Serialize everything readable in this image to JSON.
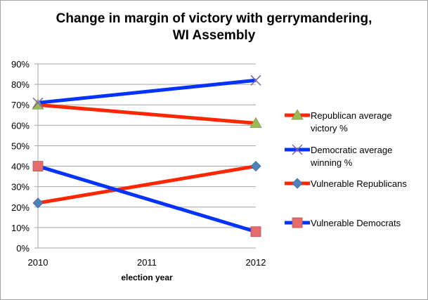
{
  "chart_data": {
    "type": "line",
    "title_line1": "Change in margin of victory with gerrymandering,",
    "title_line2": "WI Assembly",
    "xlabel": "election year",
    "ylabel": "",
    "categories": [
      "2010",
      "2011",
      "2012"
    ],
    "yticks": [
      "0%",
      "10%",
      "20%",
      "30%",
      "40%",
      "50%",
      "60%",
      "70%",
      "80%",
      "90%"
    ],
    "ylim": [
      0,
      90
    ],
    "grid": true,
    "legend_position": "right",
    "series": [
      {
        "name": "Republican average victory %",
        "legend_lines": [
          "Republican average",
          "victory %"
        ],
        "x": [
          "2010",
          "2012"
        ],
        "values": [
          70,
          61
        ],
        "line_color": "#ff2600",
        "marker": "triangle",
        "marker_color": "#9bbb59"
      },
      {
        "name": "Democratic average winning %",
        "legend_lines": [
          "Democratic average",
          "winning %"
        ],
        "x": [
          "2010",
          "2012"
        ],
        "values": [
          71,
          82
        ],
        "line_color": "#0433ff",
        "marker": "x",
        "marker_color": "#8064a2"
      },
      {
        "name": "Vulnerable Republicans",
        "legend_lines": [
          "Vulnerable Republicans"
        ],
        "x": [
          "2010",
          "2012"
        ],
        "values": [
          22,
          40
        ],
        "line_color": "#ff2600",
        "marker": "diamond",
        "marker_color": "#4f81bd"
      },
      {
        "name": "Vulnerable Democrats",
        "legend_lines": [
          "Vulnerable Democrats"
        ],
        "x": [
          "2010",
          "2012"
        ],
        "values": [
          40,
          8
        ],
        "line_color": "#0433ff",
        "marker": "square",
        "marker_color": "#e46c6c"
      }
    ]
  }
}
